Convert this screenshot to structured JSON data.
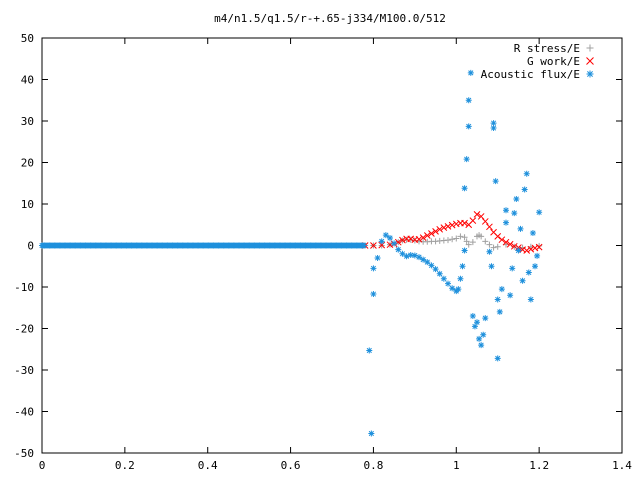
{
  "chart_data": {
    "type": "scatter",
    "title": "m4/n1.5/q1.5/r-+.65-j334/M100.0/512",
    "xlabel": "",
    "ylabel": "",
    "xlim": [
      0,
      1.4
    ],
    "ylim": [
      -50,
      50
    ],
    "x_ticks": [
      "0",
      "0.2",
      "0.4",
      "0.6",
      "0.8",
      "1",
      "1.2",
      "1.4"
    ],
    "y_ticks": [
      "50",
      "40",
      "30",
      "20",
      "10",
      "0",
      "-10",
      "-20",
      "-30",
      "-40",
      "-50"
    ],
    "x_tick_values": [
      0,
      0.2,
      0.4,
      0.6,
      0.8,
      1.0,
      1.2,
      1.4
    ],
    "y_tick_values": [
      50,
      40,
      30,
      20,
      10,
      0,
      -10,
      -20,
      -30,
      -40,
      -50
    ],
    "grid": false,
    "legend_position": "top-right",
    "series": [
      {
        "name": "R stress/E",
        "marker": "plus",
        "color": "#a0a0a0",
        "points": [
          [
            0.78,
            0
          ],
          [
            0.8,
            0
          ],
          [
            0.82,
            0
          ],
          [
            0.84,
            0.2
          ],
          [
            0.86,
            0.8
          ],
          [
            0.87,
            1.2
          ],
          [
            0.88,
            1.4
          ],
          [
            0.89,
            1.4
          ],
          [
            0.9,
            1.2
          ],
          [
            0.91,
            1.0
          ],
          [
            0.92,
            0.9
          ],
          [
            0.93,
            0.9
          ],
          [
            0.94,
            1.0
          ],
          [
            0.95,
            1.0
          ],
          [
            0.96,
            1.1
          ],
          [
            0.97,
            1.2
          ],
          [
            0.98,
            1.3
          ],
          [
            0.99,
            1.5
          ],
          [
            1.0,
            1.7
          ],
          [
            1.01,
            2.2
          ],
          [
            1.02,
            2.0
          ],
          [
            1.025,
            1.0
          ],
          [
            1.03,
            0.2
          ],
          [
            1.04,
            0.8
          ],
          [
            1.05,
            2.2
          ],
          [
            1.055,
            2.5
          ],
          [
            1.06,
            2.2
          ],
          [
            1.07,
            1.0
          ],
          [
            1.08,
            0.2
          ],
          [
            1.09,
            -0.5
          ],
          [
            1.1,
            -0.3
          ],
          [
            1.12,
            0.2
          ],
          [
            1.14,
            -0.3
          ],
          [
            1.16,
            -0.5
          ],
          [
            1.18,
            -0.3
          ],
          [
            1.2,
            -0.1
          ]
        ]
      },
      {
        "name": "G work/E",
        "marker": "cross",
        "color": "#ff0000",
        "points": [
          [
            0.78,
            0
          ],
          [
            0.8,
            0
          ],
          [
            0.82,
            0.1
          ],
          [
            0.84,
            0.2
          ],
          [
            0.85,
            0.4
          ],
          [
            0.86,
            0.8
          ],
          [
            0.87,
            1.3
          ],
          [
            0.88,
            1.6
          ],
          [
            0.89,
            1.6
          ],
          [
            0.9,
            1.4
          ],
          [
            0.91,
            1.5
          ],
          [
            0.92,
            1.9
          ],
          [
            0.93,
            2.4
          ],
          [
            0.94,
            2.9
          ],
          [
            0.95,
            3.4
          ],
          [
            0.96,
            3.9
          ],
          [
            0.97,
            4.3
          ],
          [
            0.98,
            4.6
          ],
          [
            0.99,
            4.9
          ],
          [
            1.0,
            5.2
          ],
          [
            1.01,
            5.4
          ],
          [
            1.02,
            5.4
          ],
          [
            1.03,
            5.0
          ],
          [
            1.04,
            6.0
          ],
          [
            1.05,
            7.5
          ],
          [
            1.06,
            7.0
          ],
          [
            1.07,
            5.8
          ],
          [
            1.08,
            4.5
          ],
          [
            1.09,
            3.2
          ],
          [
            1.1,
            2.2
          ],
          [
            1.11,
            1.4
          ],
          [
            1.12,
            0.8
          ],
          [
            1.13,
            0.3
          ],
          [
            1.14,
            -0.2
          ],
          [
            1.15,
            -0.5
          ],
          [
            1.16,
            -1.0
          ],
          [
            1.17,
            -1.2
          ],
          [
            1.18,
            -0.9
          ],
          [
            1.19,
            -0.6
          ],
          [
            1.2,
            -0.4
          ]
        ]
      },
      {
        "name": "Acoustic flux/E",
        "marker": "star",
        "color": "#1e90dc",
        "points": [
          [
            0.79,
            -25.3
          ],
          [
            0.795,
            -45.3
          ],
          [
            0.8,
            -11.7
          ],
          [
            0.8,
            -5.5
          ],
          [
            0.81,
            -3.0
          ],
          [
            0.82,
            1.0
          ],
          [
            0.83,
            2.5
          ],
          [
            0.84,
            1.8
          ],
          [
            0.85,
            0.5
          ],
          [
            0.86,
            -1.0
          ],
          [
            0.87,
            -2.0
          ],
          [
            0.88,
            -2.6
          ],
          [
            0.89,
            -2.3
          ],
          [
            0.9,
            -2.4
          ],
          [
            0.91,
            -2.8
          ],
          [
            0.92,
            -3.4
          ],
          [
            0.93,
            -4.0
          ],
          [
            0.94,
            -4.8
          ],
          [
            0.95,
            -5.7
          ],
          [
            0.96,
            -6.8
          ],
          [
            0.97,
            -8.0
          ],
          [
            0.98,
            -9.2
          ],
          [
            0.99,
            -10.3
          ],
          [
            1.0,
            -11.0
          ],
          [
            1.005,
            -10.5
          ],
          [
            1.01,
            -8.0
          ],
          [
            1.015,
            -5.0
          ],
          [
            1.02,
            -1.2
          ],
          [
            1.02,
            13.8
          ],
          [
            1.025,
            20.8
          ],
          [
            1.03,
            28.7
          ],
          [
            1.03,
            35.0
          ],
          [
            1.035,
            41.6
          ],
          [
            1.04,
            -17.0
          ],
          [
            1.045,
            -19.5
          ],
          [
            1.05,
            -18.5
          ],
          [
            1.055,
            -22.5
          ],
          [
            1.06,
            -24.0
          ],
          [
            1.065,
            -21.5
          ],
          [
            1.07,
            -17.5
          ],
          [
            1.08,
            -1.5
          ],
          [
            1.085,
            -5.0
          ],
          [
            1.09,
            29.5
          ],
          [
            1.09,
            28.3
          ],
          [
            1.095,
            15.5
          ],
          [
            1.1,
            -27.2
          ],
          [
            1.1,
            -13.0
          ],
          [
            1.105,
            -16.0
          ],
          [
            1.11,
            -10.5
          ],
          [
            1.12,
            8.5
          ],
          [
            1.12,
            5.5
          ],
          [
            1.13,
            -12.0
          ],
          [
            1.135,
            -5.5
          ],
          [
            1.14,
            7.8
          ],
          [
            1.145,
            11.2
          ],
          [
            1.15,
            -1.2
          ],
          [
            1.155,
            4.0
          ],
          [
            1.16,
            -8.5
          ],
          [
            1.165,
            13.5
          ],
          [
            1.17,
            17.3
          ],
          [
            1.175,
            -6.5
          ],
          [
            1.18,
            -13.0
          ],
          [
            1.185,
            3.0
          ],
          [
            1.19,
            -5.0
          ],
          [
            1.195,
            -2.5
          ],
          [
            1.2,
            8.0
          ]
        ]
      }
    ]
  }
}
